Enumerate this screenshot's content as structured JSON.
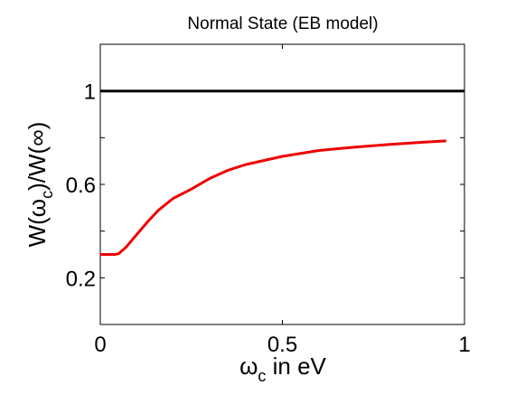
{
  "chart_data": {
    "type": "line",
    "title": "Normal State (EB model)",
    "xlabel": {
      "prefix": "ω",
      "sub": "c",
      "suffix": " in eV"
    },
    "ylabel": {
      "p1": "W(ω",
      "sub": "c",
      "p2": ")/W(∞)"
    },
    "xlim": [
      0,
      1
    ],
    "ylim": [
      0,
      1.2
    ],
    "xticks": [
      0,
      0.5,
      1
    ],
    "xtick_labels": [
      "0",
      "0.5",
      "1"
    ],
    "yticks": [
      0.2,
      0.6,
      1
    ],
    "ytick_labels": [
      "0.2",
      "0.6",
      "1"
    ],
    "minor_yticks": [
      0.4,
      0.8
    ],
    "grid": false,
    "legend": "none",
    "series": [
      {
        "color": "#000000",
        "x": [
          0,
          1
        ],
        "y": [
          1,
          1
        ]
      },
      {
        "color": "#ee0000",
        "x": [
          0.0,
          0.04,
          0.05,
          0.07,
          0.1,
          0.13,
          0.16,
          0.2,
          0.25,
          0.3,
          0.35,
          0.4,
          0.5,
          0.6,
          0.7,
          0.8,
          0.9,
          0.95
        ],
        "y": [
          0.3,
          0.3,
          0.303,
          0.33,
          0.385,
          0.44,
          0.49,
          0.54,
          0.58,
          0.625,
          0.66,
          0.685,
          0.72,
          0.745,
          0.76,
          0.772,
          0.782,
          0.786
        ]
      }
    ]
  }
}
